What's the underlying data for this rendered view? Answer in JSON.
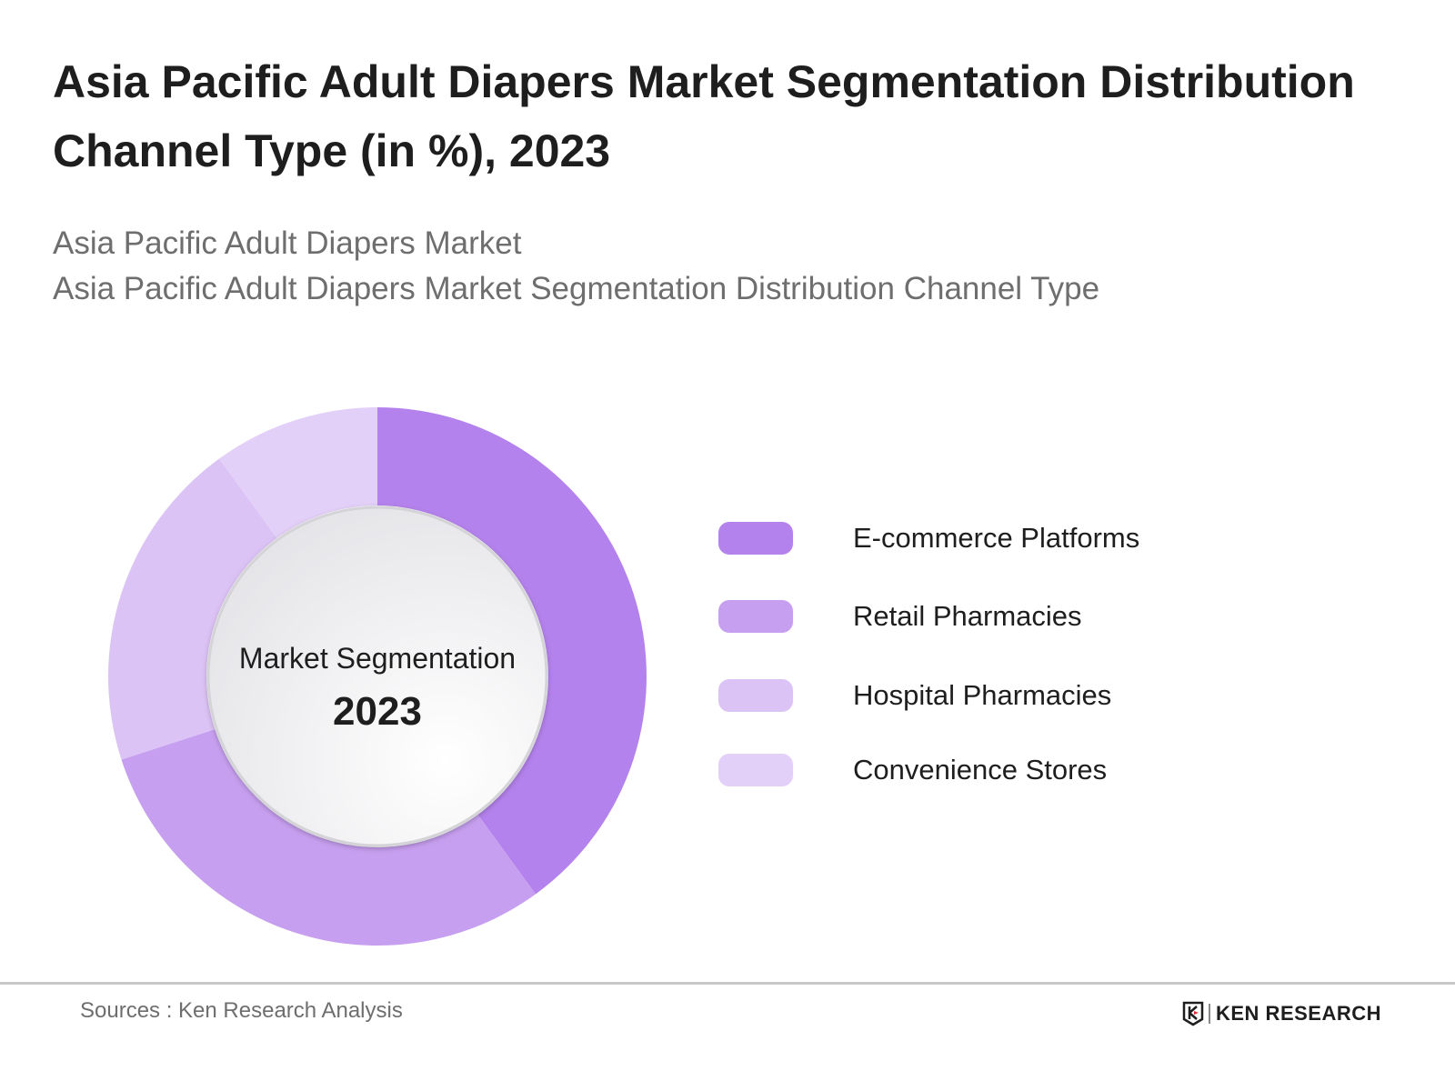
{
  "title": "Asia Pacific Adult Diapers Market Segmentation Distribution Channel Type (in %), 2023",
  "subtitles": [
    "Asia Pacific Adult Diapers Market",
    "Asia Pacific Adult Diapers Market Segmentation Distribution Channel Type"
  ],
  "chart_data": {
    "type": "pie",
    "variant": "donut",
    "center_label": "Market Segmentation",
    "center_year": "2023",
    "legend_placement": "right",
    "categories": [
      "E-commerce Platforms",
      "Retail Pharmacies",
      "Hospital Pharmacies",
      "Convenience Stores"
    ],
    "values": [
      40,
      30,
      20,
      10
    ],
    "colors": [
      "#b482ec",
      "#c79ff0",
      "#dcc3f6",
      "#e3d0f8"
    ]
  },
  "footer": {
    "source": "Sources : Ken Research Analysis",
    "logo_text": "KEN RESEARCH"
  }
}
